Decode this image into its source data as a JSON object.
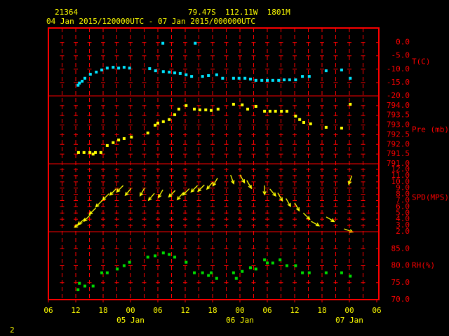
{
  "header": {
    "station": "21364",
    "location": "79.47S  112.11W  1801M",
    "period": "04 Jan 2015/120000UTC - 07 Jan 2015/000000UTC"
  },
  "page_number": "2",
  "x_axis": {
    "xlim": [
      0,
      72
    ],
    "xticks": [
      {
        "value": 0,
        "label": "06"
      },
      {
        "value": 6,
        "label": "12"
      },
      {
        "value": 12,
        "label": "18"
      },
      {
        "value": 18,
        "label": "00"
      },
      {
        "value": 24,
        "label": "06"
      },
      {
        "value": 30,
        "label": "12"
      },
      {
        "value": 36,
        "label": "18"
      },
      {
        "value": 42,
        "label": "00"
      },
      {
        "value": 48,
        "label": "06"
      },
      {
        "value": 54,
        "label": "12"
      },
      {
        "value": 60,
        "label": "18"
      },
      {
        "value": 66,
        "label": "00"
      },
      {
        "value": 72,
        "label": "06"
      }
    ],
    "dates": [
      {
        "value": 18,
        "label": "05 Jan"
      },
      {
        "value": 42,
        "label": "06 Jan"
      },
      {
        "value": 66,
        "label": "07 Jan"
      }
    ]
  },
  "chart_data": [
    {
      "type": "scatter",
      "ylabel": "T(C)",
      "color": "#00e5ff",
      "ylim": [
        -20,
        5.4
      ],
      "yticks": [
        {
          "value": 0,
          "label": "0.0"
        },
        {
          "value": -5,
          "label": "-5.0"
        },
        {
          "value": -10,
          "label": "-10.0"
        },
        {
          "value": -15,
          "label": "-15.0"
        },
        {
          "value": -20,
          "label": "-20.0"
        }
      ],
      "x": [
        6.5,
        6.8,
        7.4,
        8.0,
        9.2,
        10.5,
        11.7,
        12.9,
        14.2,
        15.4,
        16.6,
        17.8,
        22.2,
        23.5,
        25.1,
        25.2,
        26.5,
        27.7,
        28.9,
        30.2,
        31.4,
        32.2,
        33.8,
        35.1,
        36.9,
        38.2,
        40.6,
        41.8,
        43.1,
        44.3,
        45.5,
        46.8,
        48.0,
        49.2,
        50.5,
        51.7,
        52.9,
        54.2,
        55.7,
        57.2,
        60.9,
        64.3,
        66.2
      ],
      "values": [
        -16.0,
        -15.2,
        -14.5,
        -13.4,
        -11.9,
        -11.1,
        -10.3,
        -9.6,
        -9.3,
        -9.6,
        -9.3,
        -9.6,
        -9.8,
        -10.6,
        -0.3,
        -10.9,
        -11.1,
        -11.4,
        -11.6,
        -12.1,
        -12.7,
        -0.3,
        -12.7,
        -12.4,
        -12.1,
        -13.4,
        -13.4,
        -13.4,
        -13.4,
        -13.7,
        -14.2,
        -14.2,
        -14.2,
        -14.2,
        -14.2,
        -14.0,
        -14.0,
        -14.0,
        -12.7,
        -12.7,
        -10.6,
        -10.3,
        -13.4
      ]
    },
    {
      "type": "scatter",
      "ylabel": "Pre (mb)",
      "color": "#ffff00",
      "ylim": [
        791,
        794.5
      ],
      "yticks": [
        {
          "value": 791,
          "label": "791.0"
        },
        {
          "value": 791.5,
          "label": "791.5"
        },
        {
          "value": 792,
          "label": "792.0"
        },
        {
          "value": 792.5,
          "label": "792.5"
        },
        {
          "value": 793,
          "label": "793.0"
        },
        {
          "value": 793.5,
          "label": "793.5"
        },
        {
          "value": 794,
          "label": "794.0"
        }
      ],
      "x": [
        6.6,
        7.8,
        9.1,
        9.8,
        10.3,
        11.5,
        12.9,
        14.2,
        15.4,
        16.6,
        18.2,
        21.8,
        23.4,
        24.0,
        25.2,
        26.5,
        27.7,
        28.6,
        30.2,
        32.0,
        33.2,
        34.5,
        35.7,
        37.2,
        40.6,
        42.5,
        43.7,
        45.5,
        47.4,
        48.6,
        49.8,
        51.1,
        52.3,
        54.2,
        55.1,
        56.0,
        57.5,
        60.9,
        64.3,
        66.2
      ],
      "values": [
        791.58,
        791.58,
        791.58,
        791.5,
        791.58,
        791.58,
        791.94,
        792.09,
        792.23,
        792.3,
        792.38,
        792.59,
        792.99,
        793.1,
        793.17,
        793.28,
        793.53,
        793.82,
        794.0,
        793.82,
        793.78,
        793.78,
        793.75,
        793.82,
        794.07,
        794.04,
        793.82,
        793.96,
        793.71,
        793.71,
        793.71,
        793.71,
        793.71,
        793.46,
        793.28,
        793.13,
        793.06,
        792.88,
        792.84,
        794.07
      ]
    },
    {
      "type": "vector",
      "ylabel": "SPD(MPS)",
      "color": "#ffff00",
      "ylim": [
        2,
        12.9
      ],
      "yticks": [
        {
          "value": 2,
          "label": "2.0"
        },
        {
          "value": 3,
          "label": "3.0"
        },
        {
          "value": 4,
          "label": "4.0"
        },
        {
          "value": 5,
          "label": "5.0"
        },
        {
          "value": 6,
          "label": "6.0"
        },
        {
          "value": 7,
          "label": "7.0"
        },
        {
          "value": 8,
          "label": "8.0"
        },
        {
          "value": 9,
          "label": "9.0"
        },
        {
          "value": 10,
          "label": "10.0"
        },
        {
          "value": 11,
          "label": "11.0"
        },
        {
          "value": 12,
          "label": "12.0"
        }
      ],
      "x": [
        6.6,
        7.2,
        8.5,
        9.7,
        11.1,
        12.6,
        14.2,
        15.7,
        17.5,
        20.6,
        22.6,
        24.6,
        27.1,
        28.9,
        30.2,
        32.0,
        33.5,
        35.4,
        36.6,
        40.3,
        42.5,
        44.0,
        47.4,
        49.2,
        50.8,
        52.6,
        54.5,
        56.6,
        58.5,
        61.8,
        65.8,
        66.2
      ],
      "values": [
        3.1,
        3.6,
        4.2,
        5.3,
        6.5,
        7.6,
        8.4,
        8.9,
        8.4,
        8.4,
        7.6,
        8.1,
        8.1,
        7.7,
        8.4,
        8.9,
        9.0,
        9.4,
        10.0,
        10.4,
        10.5,
        9.6,
        8.7,
        8.3,
        7.6,
        6.7,
        6.0,
        4.5,
        3.3,
        4.0,
        2.2,
        10.3
      ],
      "directions": [
        60,
        50,
        45,
        45,
        45,
        45,
        45,
        45,
        40,
        30,
        40,
        30,
        45,
        40,
        45,
        45,
        45,
        40,
        30,
        340,
        330,
        330,
        0,
        320,
        330,
        330,
        330,
        315,
        300,
        300,
        290,
        20
      ]
    },
    {
      "type": "scatter",
      "ylabel": "RH(%)",
      "color": "#00dd00",
      "ylim": [
        70,
        90
      ],
      "yticks": [
        {
          "value": 70,
          "label": "70.0"
        },
        {
          "value": 75,
          "label": "75.0"
        },
        {
          "value": 80,
          "label": "80.0"
        },
        {
          "value": 85,
          "label": "85.0"
        }
      ],
      "x": [
        6.5,
        6.8,
        8.0,
        9.8,
        11.7,
        12.9,
        15.1,
        16.6,
        17.8,
        21.8,
        23.4,
        25.2,
        26.5,
        27.7,
        30.2,
        32.0,
        33.8,
        35.1,
        35.7,
        36.9,
        40.6,
        41.2,
        42.5,
        44.3,
        45.5,
        47.4,
        48.0,
        49.2,
        50.8,
        52.3,
        54.2,
        55.7,
        57.2,
        60.9,
        64.3,
        66.2
      ],
      "values": [
        72.9,
        74.8,
        74.0,
        74.0,
        77.9,
        77.9,
        79.0,
        80.0,
        81.0,
        82.5,
        82.9,
        83.75,
        83.3,
        82.5,
        81.0,
        77.9,
        77.9,
        77.1,
        77.9,
        76.25,
        77.9,
        76.25,
        78.3,
        79.4,
        79.0,
        81.7,
        80.8,
        80.8,
        81.7,
        80.0,
        80.0,
        77.9,
        77.9,
        77.9,
        77.9,
        76.9
      ]
    }
  ]
}
